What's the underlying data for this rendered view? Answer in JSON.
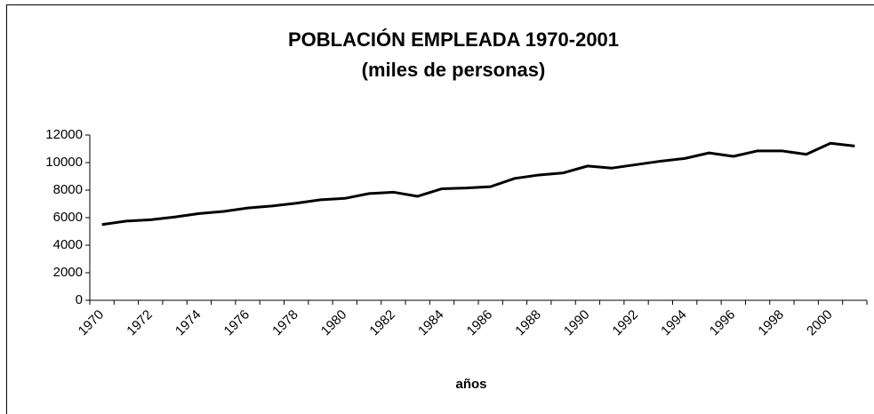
{
  "chart_data": {
    "type": "line",
    "title": "POBLACIÓN EMPLEADA 1970-2001",
    "subtitle": "(miles de personas)",
    "x_label": "años",
    "categories": [
      "1970",
      null,
      "1972",
      null,
      "1974",
      null,
      "1976",
      null,
      "1978",
      null,
      "1980",
      null,
      "1982",
      null,
      "1984",
      null,
      "1986",
      null,
      "1988",
      null,
      "1990",
      null,
      "1992",
      null,
      "1994",
      null,
      "1996",
      null,
      "1998",
      null,
      "2000",
      null
    ],
    "values": [
      5500,
      5750,
      5850,
      6050,
      6300,
      6450,
      6700,
      6850,
      7050,
      7300,
      7400,
      7750,
      7850,
      7550,
      8100,
      8150,
      8250,
      8850,
      9100,
      9250,
      9750,
      9600,
      9850,
      10100,
      10300,
      10700,
      10450,
      10850,
      10850,
      10600,
      11400,
      11200
    ],
    "color": "#000000",
    "ylim": [
      0,
      12000
    ],
    "yticks": [
      0,
      2000,
      4000,
      6000,
      8000,
      10000,
      12000
    ],
    "grid": false
  }
}
